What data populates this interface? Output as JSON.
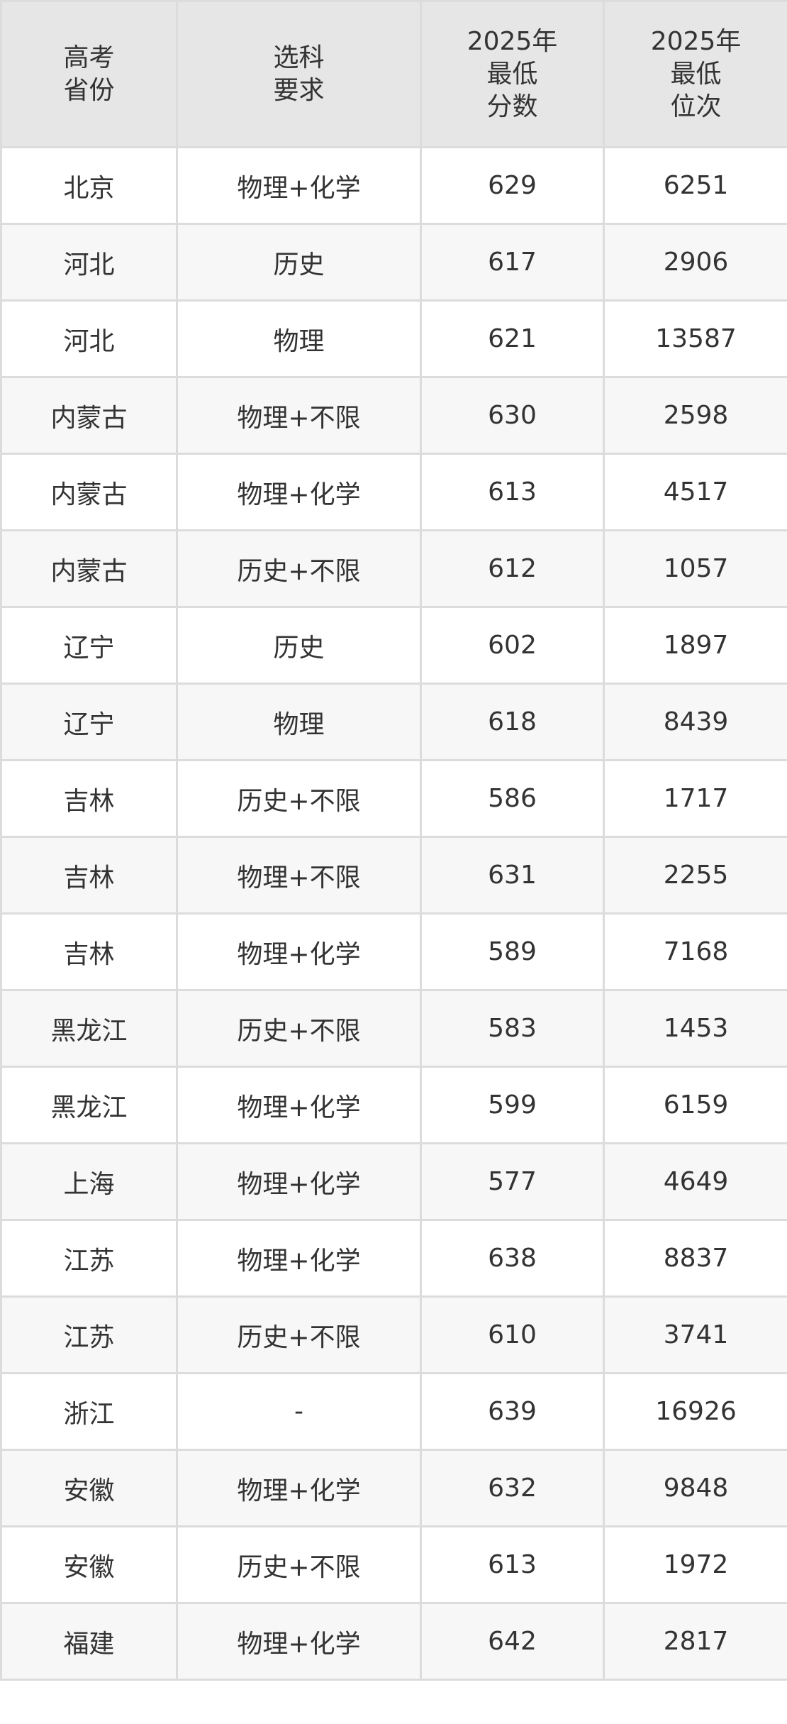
{
  "table": {
    "headers": [
      [
        "高考",
        "省份"
      ],
      [
        "选科",
        "要求"
      ],
      [
        "2025年",
        "最低",
        "分数"
      ],
      [
        "2025年",
        "最低",
        "位次"
      ]
    ],
    "rows": [
      [
        "北京",
        "物理+化学",
        "629",
        "6251"
      ],
      [
        "河北",
        "历史",
        "617",
        "2906"
      ],
      [
        "河北",
        "物理",
        "621",
        "13587"
      ],
      [
        "内蒙古",
        "物理+不限",
        "630",
        "2598"
      ],
      [
        "内蒙古",
        "物理+化学",
        "613",
        "4517"
      ],
      [
        "内蒙古",
        "历史+不限",
        "612",
        "1057"
      ],
      [
        "辽宁",
        "历史",
        "602",
        "1897"
      ],
      [
        "辽宁",
        "物理",
        "618",
        "8439"
      ],
      [
        "吉林",
        "历史+不限",
        "586",
        "1717"
      ],
      [
        "吉林",
        "物理+不限",
        "631",
        "2255"
      ],
      [
        "吉林",
        "物理+化学",
        "589",
        "7168"
      ],
      [
        "黑龙江",
        "历史+不限",
        "583",
        "1453"
      ],
      [
        "黑龙江",
        "物理+化学",
        "599",
        "6159"
      ],
      [
        "上海",
        "物理+化学",
        "577",
        "4649"
      ],
      [
        "江苏",
        "物理+化学",
        "638",
        "8837"
      ],
      [
        "江苏",
        "历史+不限",
        "610",
        "3741"
      ],
      [
        "浙江",
        "-",
        "639",
        "16926"
      ],
      [
        "安徽",
        "物理+化学",
        "632",
        "9848"
      ],
      [
        "安徽",
        "历史+不限",
        "613",
        "1972"
      ],
      [
        "福建",
        "物理+化学",
        "642",
        "2817"
      ]
    ]
  },
  "colors": {
    "header_bg": "#e6e6e6",
    "alt_row_bg": "#f7f7f7",
    "border": "#dcdcdc",
    "text": "#333333"
  }
}
